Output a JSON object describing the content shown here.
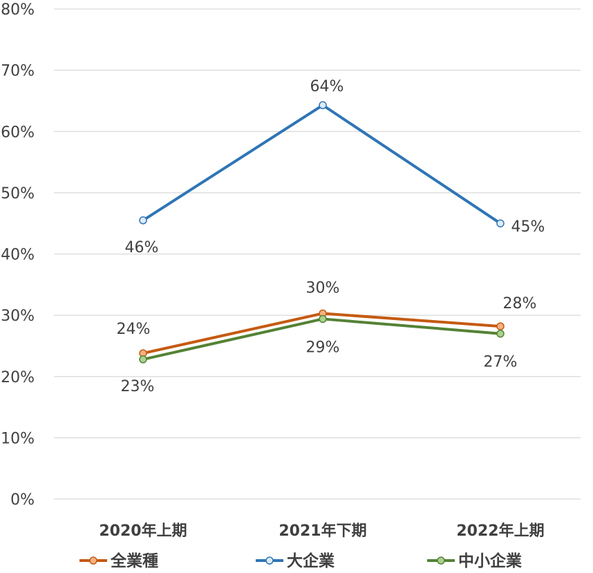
{
  "chart_data": {
    "type": "line",
    "categories": [
      "2020年上期",
      "2021年下期",
      "2022年上期"
    ],
    "ylim": [
      0,
      0.8
    ],
    "yticks": [
      "0%",
      "10%",
      "20%",
      "30%",
      "40%",
      "50%",
      "60%",
      "70%",
      "80%"
    ],
    "grid": true,
    "legend_position": "bottom",
    "series": [
      {
        "name": "全業種",
        "color": "#c55a11",
        "marker_fill": "#f4b183",
        "values": [
          0.238,
          0.303,
          0.282
        ],
        "labels": [
          "24%",
          "30%",
          "28%"
        ]
      },
      {
        "name": "大企業",
        "color": "#2e75b6",
        "marker_fill": "#ddebf7",
        "values": [
          0.455,
          0.643,
          0.45
        ],
        "labels": [
          "46%",
          "64%",
          "45%"
        ]
      },
      {
        "name": "中小企業",
        "color": "#548235",
        "marker_fill": "#a9d18e",
        "values": [
          0.228,
          0.294,
          0.27
        ],
        "labels": [
          "23%",
          "29%",
          "27%"
        ]
      }
    ]
  }
}
